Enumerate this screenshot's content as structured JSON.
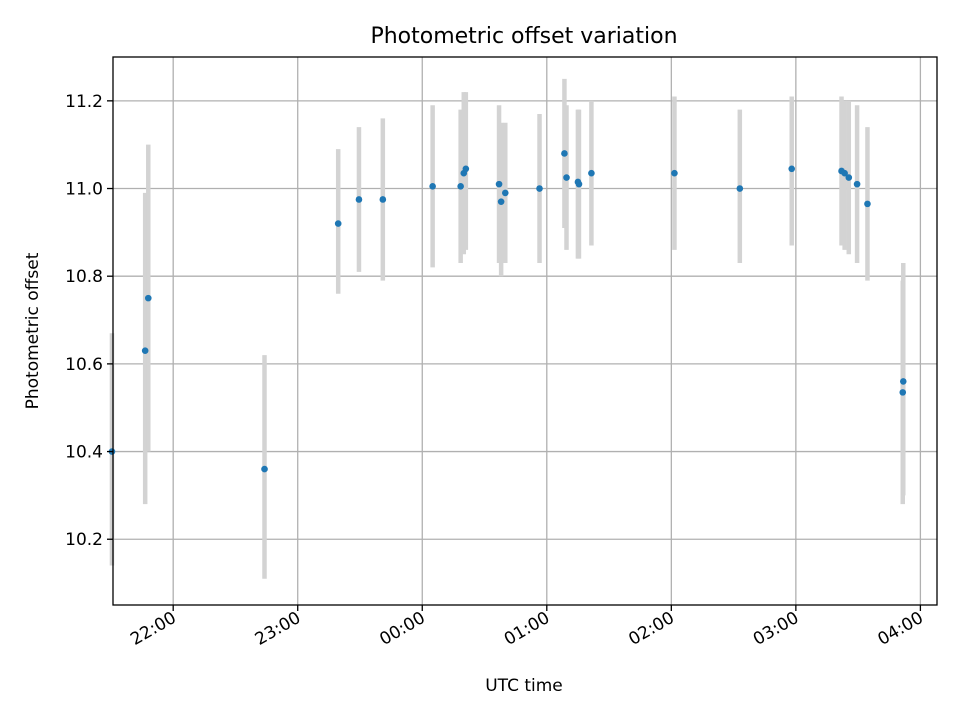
{
  "chart_data": {
    "type": "scatter",
    "title": "Photometric offset variation",
    "xlabel": "UTC time",
    "ylabel": "Photometric offset",
    "grid": true,
    "legend": "none",
    "colors": {
      "point": "#1f77b4",
      "error_bar": "#d3d3d3"
    },
    "xlim": [
      "21:31",
      "04:08"
    ],
    "ylim": [
      10.05,
      11.3
    ],
    "x_ticks": [
      "22:00",
      "23:00",
      "00:00",
      "01:00",
      "02:00",
      "03:00",
      "04:00"
    ],
    "y_ticks": [
      "10.2",
      "10.4",
      "10.6",
      "10.8",
      "11.0",
      "11.2"
    ],
    "points": [
      {
        "x": "21:30:30",
        "y": 10.4,
        "err_low": 10.14,
        "err_high": 10.67
      },
      {
        "x": "21:46:30",
        "y": 10.63,
        "err_low": 10.28,
        "err_high": 10.99
      },
      {
        "x": "21:48:00",
        "y": 10.75,
        "err_low": 10.4,
        "err_high": 11.1
      },
      {
        "x": "22:44:00",
        "y": 10.36,
        "err_low": 10.11,
        "err_high": 10.62
      },
      {
        "x": "23:19:30",
        "y": 10.92,
        "err_low": 10.76,
        "err_high": 11.09
      },
      {
        "x": "23:29:30",
        "y": 10.975,
        "err_low": 10.81,
        "err_high": 11.14
      },
      {
        "x": "23:41:00",
        "y": 10.975,
        "err_low": 10.79,
        "err_high": 11.16
      },
      {
        "x": "00:05:00",
        "y": 11.005,
        "err_low": 10.82,
        "err_high": 11.19
      },
      {
        "x": "00:18:30",
        "y": 11.005,
        "err_low": 10.83,
        "err_high": 11.18
      },
      {
        "x": "00:20:00",
        "y": 11.035,
        "err_low": 10.85,
        "err_high": 11.22
      },
      {
        "x": "00:21:00",
        "y": 11.045,
        "err_low": 10.86,
        "err_high": 11.22
      },
      {
        "x": "00:37:00",
        "y": 11.01,
        "err_low": 10.83,
        "err_high": 11.19
      },
      {
        "x": "00:38:00",
        "y": 10.97,
        "err_low": 10.8,
        "err_high": 11.15
      },
      {
        "x": "00:40:00",
        "y": 10.99,
        "err_low": 10.83,
        "err_high": 11.15
      },
      {
        "x": "00:56:30",
        "y": 11.0,
        "err_low": 10.83,
        "err_high": 11.17
      },
      {
        "x": "01:08:30",
        "y": 11.08,
        "err_low": 10.91,
        "err_high": 11.25
      },
      {
        "x": "01:09:30",
        "y": 11.025,
        "err_low": 10.86,
        "err_high": 11.19
      },
      {
        "x": "01:15:00",
        "y": 11.015,
        "err_low": 10.84,
        "err_high": 11.18
      },
      {
        "x": "01:15:30",
        "y": 11.01,
        "err_low": 10.84,
        "err_high": 11.18
      },
      {
        "x": "01:21:30",
        "y": 11.035,
        "err_low": 10.87,
        "err_high": 11.2
      },
      {
        "x": "02:01:30",
        "y": 11.035,
        "err_low": 10.86,
        "err_high": 11.21
      },
      {
        "x": "02:33:00",
        "y": 11.0,
        "err_low": 10.83,
        "err_high": 11.18
      },
      {
        "x": "02:58:00",
        "y": 11.045,
        "err_low": 10.87,
        "err_high": 11.21
      },
      {
        "x": "03:22:00",
        "y": 11.04,
        "err_low": 10.87,
        "err_high": 11.21
      },
      {
        "x": "03:23:30",
        "y": 11.035,
        "err_low": 10.86,
        "err_high": 11.2
      },
      {
        "x": "03:25:30",
        "y": 11.025,
        "err_low": 10.85,
        "err_high": 11.2
      },
      {
        "x": "03:29:30",
        "y": 11.01,
        "err_low": 10.83,
        "err_high": 11.19
      },
      {
        "x": "03:34:30",
        "y": 10.965,
        "err_low": 10.79,
        "err_high": 11.14
      },
      {
        "x": "03:51:30",
        "y": 10.535,
        "err_low": 10.28,
        "err_high": 10.79
      },
      {
        "x": "03:51:45",
        "y": 10.56,
        "err_low": 10.3,
        "err_high": 10.83
      }
    ]
  }
}
